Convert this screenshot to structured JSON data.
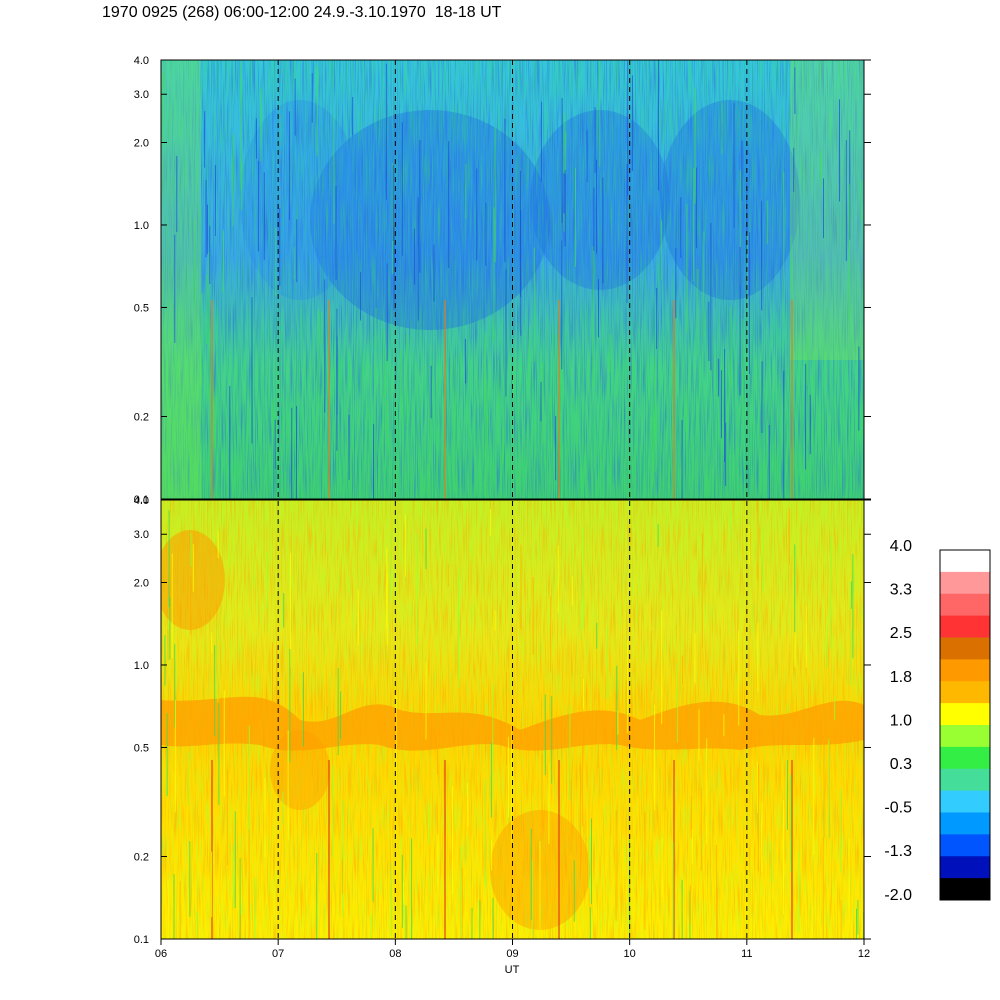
{
  "title": "1970 0925 (268) 06:00-12:00 24.9.-3.10.1970  18-18 UT",
  "chart_data": [
    {
      "type": "heatmap",
      "panel": "upper",
      "xlabel": "",
      "ylabel": "",
      "yscale": "log",
      "ylim": [
        0.1,
        4.0
      ],
      "yticks": [
        0.1,
        0.2,
        0.5,
        1.0,
        2.0,
        3.0,
        4.0
      ],
      "ytick_labels": [
        "0.1",
        "0.2",
        "0.5",
        "1.0",
        "2.0",
        "3.0",
        "4.0"
      ],
      "xlim": [
        6,
        12
      ],
      "hour_markers": [
        7,
        8,
        9,
        10,
        11
      ],
      "dominant_levels": [
        "-0.5",
        "0.3"
      ],
      "low_level_regions": "blue patches between 0.5 and 3.0 during 07-12 UT"
    },
    {
      "type": "heatmap",
      "panel": "lower",
      "xlabel": "UT",
      "ylabel": "",
      "yscale": "log",
      "ylim": [
        0.1,
        4.0
      ],
      "yticks": [
        0.1,
        0.2,
        0.5,
        1.0,
        2.0,
        3.0,
        4.0
      ],
      "ytick_labels": [
        "0.1",
        "0.2",
        "0.5",
        "1.0",
        "2.0",
        "3.0",
        "4.0"
      ],
      "xlim": [
        6,
        12
      ],
      "xticks": [
        6,
        7,
        8,
        9,
        10,
        11,
        12
      ],
      "xtick_labels": [
        "06",
        "07",
        "08",
        "09",
        "10",
        "11",
        "12"
      ],
      "hour_markers": [
        7,
        8,
        9,
        10,
        11
      ],
      "dominant_levels": [
        "1.0",
        "1.8"
      ],
      "high_level_band": "orange band near 0.6-0.7 throughout"
    }
  ],
  "colorbar": {
    "labels": [
      "4.0",
      "3.3",
      "2.5",
      "1.8",
      "1.0",
      "0.3",
      "-0.5",
      "-1.3",
      "-2.0"
    ],
    "colors": [
      "#ffffff",
      "#ff9999",
      "#ff6666",
      "#ff3333",
      "#d97000",
      "#ff9900",
      "#ffb800",
      "#ffff00",
      "#99ff33",
      "#33ee44",
      "#44dd99",
      "#33ccff",
      "#0099ff",
      "#0055ff",
      "#0011bb",
      "#000000"
    ]
  }
}
